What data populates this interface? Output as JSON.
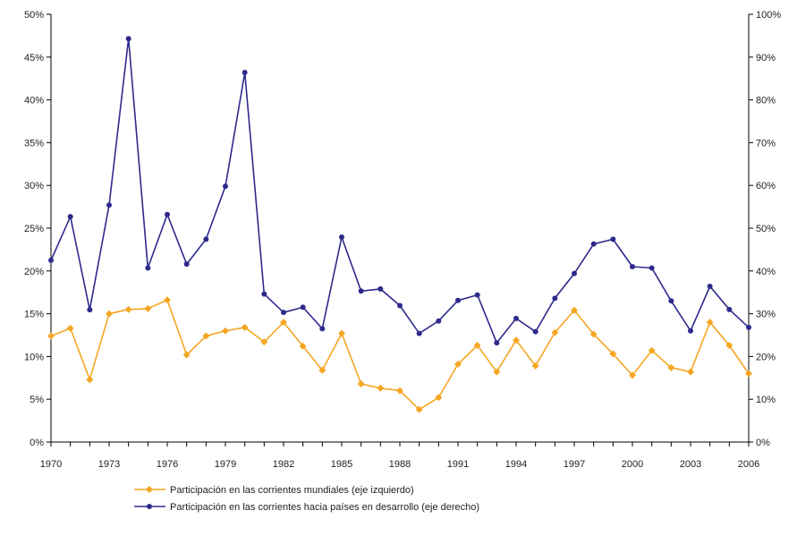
{
  "chart_data": {
    "type": "line",
    "x": [
      1970,
      1971,
      1972,
      1973,
      1974,
      1975,
      1976,
      1977,
      1978,
      1979,
      1980,
      1981,
      1982,
      1983,
      1984,
      1985,
      1986,
      1987,
      1988,
      1989,
      1990,
      1991,
      1992,
      1993,
      1994,
      1995,
      1996,
      1997,
      1998,
      1999,
      2000,
      2001,
      2002,
      2003,
      2004,
      2005,
      2006
    ],
    "x_tick_labels": [
      "1970",
      "1973",
      "1976",
      "1979",
      "1982",
      "1985",
      "1988",
      "1991",
      "1994",
      "1997",
      "2000",
      "2003",
      "2006"
    ],
    "x_ticks": [
      1970,
      1973,
      1976,
      1979,
      1982,
      1985,
      1988,
      1991,
      1994,
      1997,
      2000,
      2003,
      2006
    ],
    "y_left": {
      "lim": [
        0,
        50
      ],
      "tick_labels": [
        "0%",
        "5%",
        "10%",
        "15%",
        "20%",
        "25%",
        "30%",
        "35%",
        "40%",
        "45%",
        "50%"
      ],
      "ticks": [
        0,
        5,
        10,
        15,
        20,
        25,
        30,
        35,
        40,
        45,
        50
      ]
    },
    "y_right": {
      "lim": [
        0,
        100
      ],
      "tick_labels": [
        "0%",
        "10%",
        "20%",
        "30%",
        "40%",
        "50%",
        "60%",
        "70%",
        "80%",
        "90%",
        "100%"
      ],
      "ticks": [
        0,
        10,
        20,
        30,
        40,
        50,
        60,
        70,
        80,
        90,
        100
      ]
    },
    "grid": false,
    "legend_position": "bottom",
    "series": [
      {
        "name": "Participación en las corrientes mundiales (eje izquierdo)",
        "axis": "left",
        "color": "#F5A623",
        "marker": "diamond",
        "values": [
          12.4,
          13.3,
          7.3,
          15.0,
          15.5,
          15.6,
          16.6,
          10.2,
          12.4,
          13.0,
          13.4,
          11.7,
          14.0,
          11.2,
          8.4,
          12.7,
          6.8,
          6.3,
          6.0,
          3.8,
          5.2,
          9.1,
          11.3,
          8.2,
          11.9,
          8.9,
          12.8,
          15.4,
          12.6,
          10.3,
          7.8,
          10.7,
          8.7,
          8.2,
          14.0,
          11.3,
          8.0
        ]
      },
      {
        "name": "Participación en las corrientes hacia países en desarrollo (eje derecho)",
        "axis": "right",
        "color": "#2E2A8C",
        "marker": "circle",
        "values": [
          42.5,
          52.7,
          30.9,
          55.4,
          94.3,
          40.7,
          53.2,
          41.6,
          47.4,
          59.8,
          86.4,
          34.6,
          30.3,
          31.5,
          26.5,
          47.9,
          35.3,
          35.8,
          31.9,
          25.4,
          28.3,
          33.1,
          34.4,
          23.2,
          28.9,
          25.8,
          33.6,
          39.4,
          46.3,
          47.4,
          41.0,
          40.7,
          33.0,
          26.0,
          36.4,
          31.0,
          26.8
        ]
      }
    ]
  }
}
